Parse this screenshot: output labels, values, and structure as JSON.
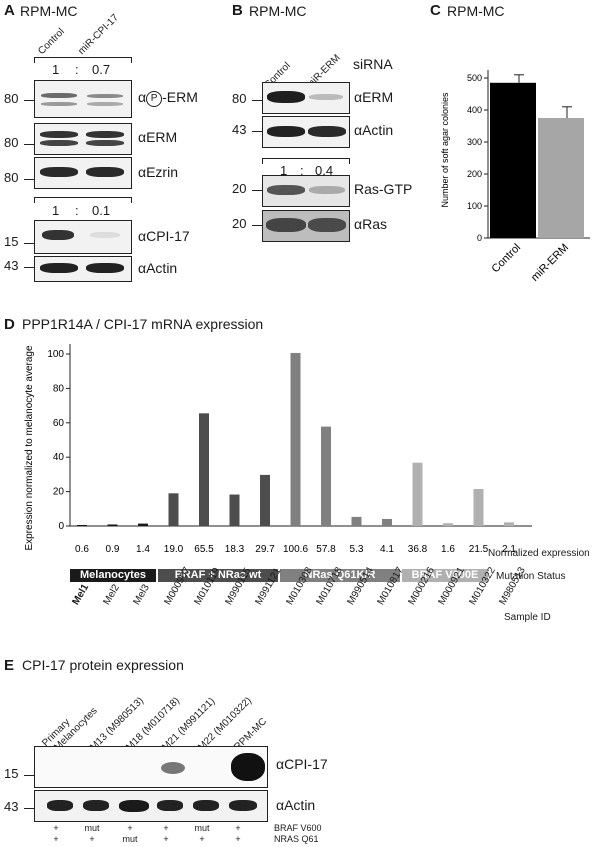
{
  "panelA": {
    "letter": "A",
    "title": "RPM-MC",
    "lanes": [
      "Control",
      "miR-CPI-17"
    ],
    "ratio_pERM": [
      "1",
      ":",
      "0.7"
    ],
    "ratio_CPI17": [
      "1",
      ":",
      "0.1"
    ],
    "blots": [
      {
        "mw": "80",
        "antibody_prefix": "α",
        "antibody_circle": "P",
        "antibody_suffix": "-ERM"
      },
      {
        "mw": "80",
        "antibody": "αERM"
      },
      {
        "mw": "80",
        "antibody": "αEzrin"
      },
      {
        "mw": "15",
        "antibody": "αCPI-17"
      },
      {
        "mw": "43",
        "antibody": "αActin"
      }
    ]
  },
  "panelB": {
    "letter": "B",
    "title": "RPM-MC",
    "lanes": [
      "Control",
      "miR-ERM"
    ],
    "sirna_label": "siRNA",
    "ratio": [
      "1",
      ":",
      "0.4"
    ],
    "blots": [
      {
        "mw": "80",
        "antibody": "αERM"
      },
      {
        "mw": "43",
        "antibody": "αActin"
      },
      {
        "mw": "20",
        "antibody": "Ras-GTP"
      },
      {
        "mw": "20",
        "antibody": "αRas"
      }
    ]
  },
  "panelC": {
    "letter": "C",
    "title": "RPM-MC"
  },
  "panelD": {
    "letter": "D",
    "title": "PPP1R14A / CPI-17 mRNA expression",
    "row_normalized": "Normalized expression",
    "row_mutation": "Mutation Status",
    "row_sample": "Sample ID",
    "groups": [
      {
        "label": "Melanocytes",
        "color": "#1a1a1a",
        "start": 0,
        "end": 2
      },
      {
        "label": "BRAF + NRas wt",
        "color": "#4d4d4d",
        "start": 3,
        "end": 6
      },
      {
        "label": "NRas Q61K/R",
        "color": "#808080",
        "start": 7,
        "end": 10
      },
      {
        "label": "BRAF V600E",
        "color": "#b0b0b0",
        "start": 11,
        "end": 15
      }
    ],
    "value_labels": [
      "0.6",
      "0.9",
      "1.4",
      "19.0",
      "65.5",
      "18.3",
      "29.7",
      "100.6",
      "57.8",
      "5.3",
      "4.1",
      "36.8",
      "1.6",
      "21.5",
      "2.1"
    ],
    "sample_ids": [
      "Mel1",
      "Mel2",
      "Mel3",
      "M000907",
      "M010119",
      "M990115",
      "M991121",
      "M010308",
      "M010718",
      "M990514",
      "M010817",
      "M000216",
      "M000921",
      "M010322",
      "M980513"
    ]
  },
  "panelE": {
    "letter": "E",
    "title": "CPI-17 protein expression",
    "lanes": [
      "Primary Melanocytes",
      "M13 (M980513)",
      "M18 (M010718)",
      "M21 (M991121)",
      "M22 (M010322)",
      "RPM-MC"
    ],
    "lane_line2_first": "Melanocytes",
    "lane_line1_first": "Primary",
    "blots": [
      {
        "mw": "15",
        "antibody": "αCPI-17"
      },
      {
        "mw": "43",
        "antibody": "αActin"
      }
    ],
    "braf_label": "BRAF V600",
    "nras_label": "NRAS Q61",
    "braf_status": [
      "+",
      "mut",
      "+",
      "+",
      "mut",
      "+"
    ],
    "nras_status": [
      "+",
      "+",
      "mut",
      "+",
      "+",
      "+"
    ]
  },
  "chart_data": [
    {
      "type": "bar",
      "title": "RPM-MC",
      "categories": [
        "Control",
        "miR-ERM"
      ],
      "values": [
        485,
        375
      ],
      "errors": [
        25,
        35
      ],
      "colors": [
        "#000000",
        "#a6a6a6"
      ],
      "ylabel": "Number of soft agar colonies",
      "ylim": [
        0,
        500
      ],
      "yticks": [
        0,
        100,
        200,
        300,
        400,
        500
      ]
    },
    {
      "type": "bar",
      "title": "PPP1R14A / CPI-17 mRNA expression",
      "categories": [
        "Mel1",
        "Mel2",
        "Mel3",
        "M000907",
        "M010119",
        "M990115",
        "M991121",
        "M010308",
        "M010718",
        "M990514",
        "M010817",
        "M000216",
        "M000921",
        "M010322",
        "M980513"
      ],
      "values": [
        0.6,
        0.9,
        1.4,
        19.0,
        65.5,
        18.3,
        29.7,
        100.6,
        57.8,
        5.3,
        4.1,
        36.8,
        1.6,
        21.5,
        2.1
      ],
      "colors": [
        "#1a1a1a",
        "#1a1a1a",
        "#1a1a1a",
        "#4d4d4d",
        "#4d4d4d",
        "#4d4d4d",
        "#4d4d4d",
        "#808080",
        "#808080",
        "#808080",
        "#808080",
        "#b0b0b0",
        "#b0b0b0",
        "#b0b0b0",
        "#b0b0b0"
      ],
      "ylabel": "Expression normalized to melanocyte average",
      "ylim": [
        0,
        100
      ],
      "yticks": [
        0,
        20,
        40,
        60,
        80,
        100
      ]
    }
  ]
}
